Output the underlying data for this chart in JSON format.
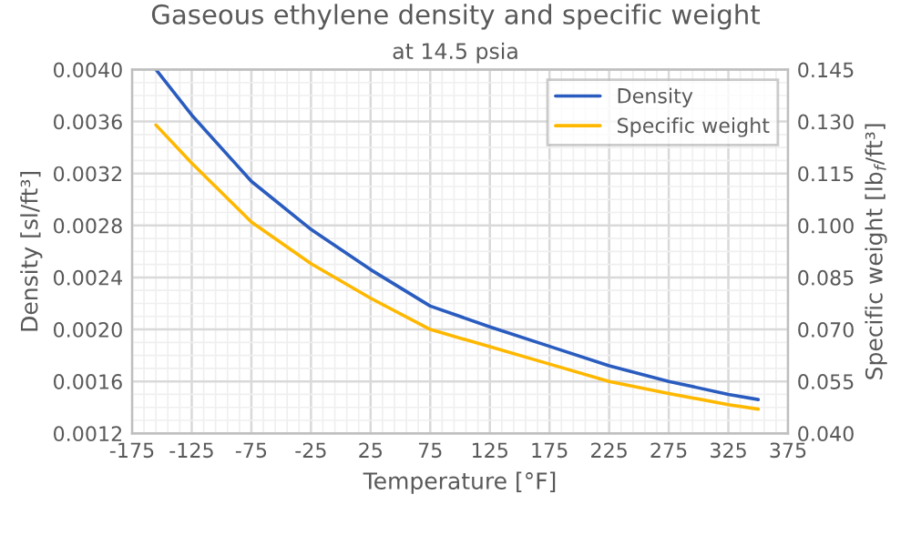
{
  "chart_data": {
    "type": "line",
    "title": "Gaseous ethylene density and specific weight",
    "subtitle": "at 14.5 psia",
    "xlabel": "Temperature [°F]",
    "ylabel": "Density [sl/ft³]",
    "y2label": "Specific weight [lb$_{f}$/ft³]",
    "x": [
      -155,
      -125,
      -75,
      -25,
      25,
      75,
      125,
      175,
      225,
      275,
      325,
      350
    ],
    "series": [
      {
        "name": "Density",
        "color": "#2a5cbf",
        "values": [
          0.004,
          0.00365,
          0.00314,
          0.00277,
          0.00246,
          0.00218,
          0.00202,
          0.00187,
          0.00172,
          0.0016,
          0.0015,
          0.00146
        ]
      },
      {
        "name": "Specific weight",
        "color": "#ffb800",
        "axis": "y2",
        "values": [
          0.129,
          0.118,
          0.101,
          0.089,
          0.079,
          0.07,
          0.065,
          0.06,
          0.055,
          0.0515,
          0.0483,
          0.047
        ]
      }
    ],
    "xlim": [
      -175,
      375
    ],
    "xticks": [
      -175,
      -125,
      -75,
      -25,
      25,
      75,
      125,
      175,
      225,
      275,
      325,
      375
    ],
    "ylim": [
      0.0012,
      0.004
    ],
    "yticks": [
      {
        "value": 0.0012,
        "label": "0.0012"
      },
      {
        "value": 0.0016,
        "label": "0.0016"
      },
      {
        "value": 0.002,
        "label": "0.0020"
      },
      {
        "value": 0.0024,
        "label": "0.0024"
      },
      {
        "value": 0.0028,
        "label": "0.0028"
      },
      {
        "value": 0.0032,
        "label": "0.0032"
      },
      {
        "value": 0.0036,
        "label": "0.0036"
      },
      {
        "value": 0.004,
        "label": "0.0040"
      }
    ],
    "y2lim": [
      0.04,
      0.145
    ],
    "y2ticks": [
      {
        "value": 0.04,
        "label": "0.040"
      },
      {
        "value": 0.055,
        "label": "0.055"
      },
      {
        "value": 0.07,
        "label": "0.070"
      },
      {
        "value": 0.085,
        "label": "0.085"
      },
      {
        "value": 0.1,
        "label": "0.100"
      },
      {
        "value": 0.115,
        "label": "0.115"
      },
      {
        "value": 0.13,
        "label": "0.130"
      },
      {
        "value": 0.145,
        "label": "0.145"
      }
    ],
    "grid": true,
    "legend": "top right",
    "marker": "none",
    "line_style": "solid"
  }
}
